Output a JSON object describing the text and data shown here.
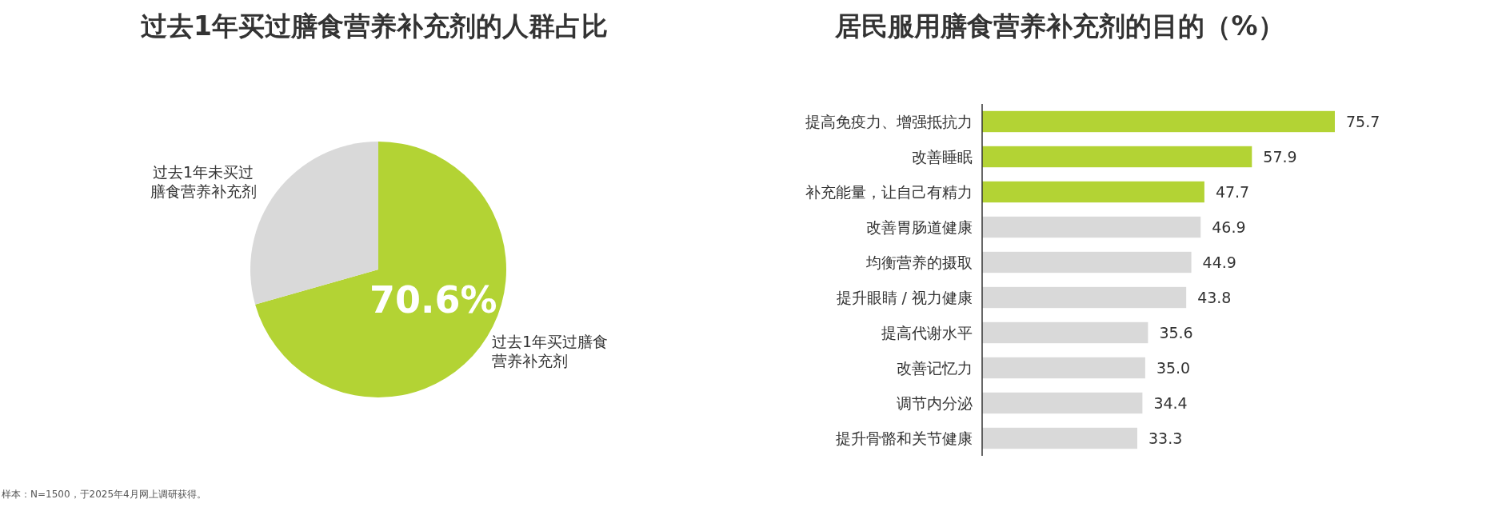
{
  "chart_data": [
    {
      "type": "pie",
      "title": "过去1年买过膳食营养补充剂的人群占比",
      "categories": [
        "过去1年买过膳食营养补充剂",
        "过去1年未买过膳食营养补充剂"
      ],
      "values": [
        70.6,
        29.4
      ],
      "colors": [
        "#b3d334",
        "#d9d9d9"
      ],
      "value_labels": [
        "70.6%",
        null
      ],
      "annotations": [
        "样本：N=1500，于2025年4月网上调研获得。"
      ]
    },
    {
      "type": "bar",
      "orientation": "horizontal",
      "relative": false,
      "title": "居民服用膳食营养补充剂的目的（%）",
      "categories": [
        "提高免疫力、增强抵抗力",
        "改善睡眠",
        "补充能量，让自己有精力",
        "改善胃肠道健康",
        "均衡营养的摄取",
        "提升眼睛 / 视力健康",
        "提高代谢水平",
        "改善记忆力",
        "调节内分泌",
        "提升骨骼和关节健康"
      ],
      "values": [
        75.7,
        57.9,
        47.7,
        46.9,
        44.9,
        43.8,
        35.6,
        35.0,
        34.4,
        33.3
      ],
      "value_labels": [
        "75.7",
        "57.9",
        "47.7",
        "46.9",
        "44.9",
        "43.8",
        "35.6",
        "35.0",
        "34.4",
        "33.3"
      ],
      "colors": [
        "#b3d334",
        "#b3d334",
        "#b3d334",
        "#d9d9d9",
        "#d9d9d9",
        "#d9d9d9",
        "#d9d9d9",
        "#d9d9d9",
        "#d9d9d9",
        "#d9d9d9"
      ]
    }
  ]
}
